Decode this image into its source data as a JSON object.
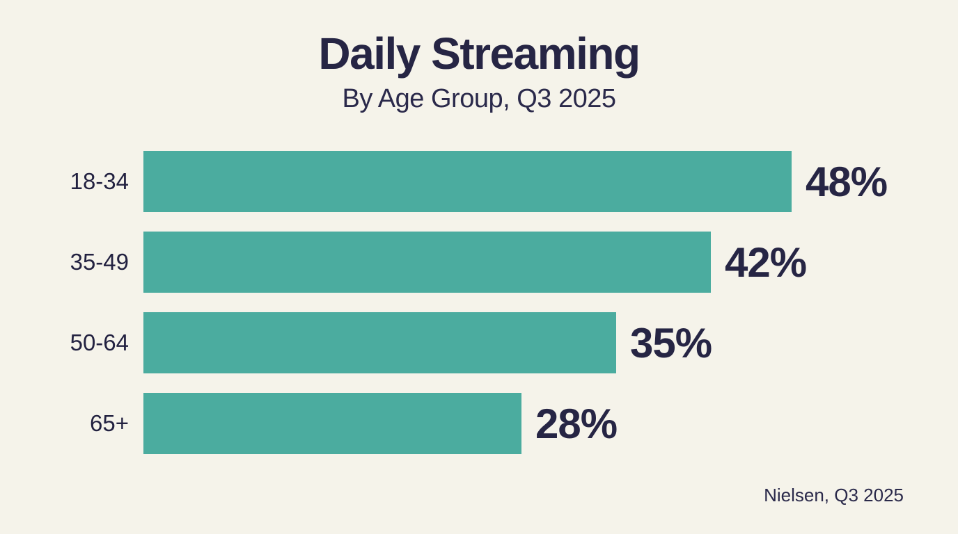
{
  "page": {
    "background_color": "#f5f3ea",
    "accent_color": "#4bac9f",
    "text_color": "#262544"
  },
  "header": {
    "title": "Daily Streaming",
    "subtitle": "By Age Group, Q3 2025"
  },
  "footer": {
    "source": "Nielsen, Q3 2025"
  },
  "chart_data": {
    "type": "bar",
    "orientation": "horizontal",
    "title": "Daily Streaming",
    "subtitle": "By Age Group, Q3 2025",
    "categories": [
      "18-34",
      "35-49",
      "50-64",
      "65+"
    ],
    "values": [
      48,
      42,
      35,
      28
    ],
    "value_labels": [
      "48%",
      "42%",
      "35%",
      "28%"
    ],
    "unit": "%",
    "xlabel": "",
    "ylabel": "",
    "xlim": [
      0,
      48
    ],
    "grid": false,
    "legend": false,
    "bar_color": "#4bac9f",
    "label_color": "#262544",
    "source": "Nielsen, Q3 2025"
  }
}
